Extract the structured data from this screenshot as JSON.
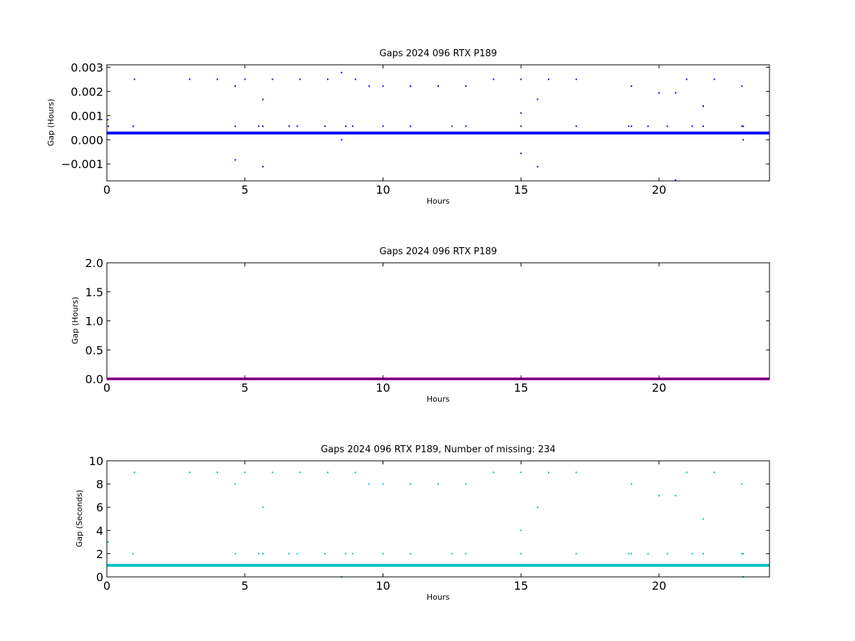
{
  "chart_data": [
    {
      "type": "scatter",
      "title": "Gaps 2024 096 RTX  P189",
      "xlabel": "Hours",
      "ylabel": "Gap (Hours)",
      "xlim": [
        0,
        24
      ],
      "ylim": [
        -0.0017,
        0.0031
      ],
      "xticks": [
        0,
        5,
        10,
        15,
        20
      ],
      "xtick_labels": [
        "0",
        "5",
        "10",
        "15",
        "20"
      ],
      "yticks": [
        -0.001,
        0.0,
        0.001,
        0.002,
        0.003
      ],
      "ytick_labels": [
        "−0.001",
        "0.000",
        "0.001",
        "0.002",
        "0.003"
      ],
      "grid": false,
      "series": [
        {
          "color": "#0000ff",
          "baseline": {
            "from": 0,
            "to": 24,
            "y": 0.00028,
            "dense": true
          },
          "points": [
            [
              0.03,
              0.00083
            ],
            [
              0.05,
              0.00056
            ],
            [
              0.95,
              0.00056
            ],
            [
              1.0,
              0.0025
            ],
            [
              3.0,
              0.0025
            ],
            [
              4.0,
              0.0025
            ],
            [
              4.65,
              0.00222
            ],
            [
              4.65,
              -0.00083
            ],
            [
              4.65,
              0.00056
            ],
            [
              5.0,
              0.0025
            ],
            [
              5.5,
              0.00056
            ],
            [
              5.65,
              0.00167
            ],
            [
              5.65,
              0.00056
            ],
            [
              5.65,
              -0.00111
            ],
            [
              6.0,
              0.0025
            ],
            [
              6.6,
              0.00056
            ],
            [
              6.9,
              0.00056
            ],
            [
              7.0,
              0.0025
            ],
            [
              7.9,
              0.00056
            ],
            [
              8.0,
              0.0025
            ],
            [
              8.5,
              0.00278
            ],
            [
              8.5,
              0.0
            ],
            [
              8.65,
              0.00056
            ],
            [
              8.9,
              0.00056
            ],
            [
              9.0,
              0.0025
            ],
            [
              9.5,
              0.00222
            ],
            [
              10.0,
              0.00222
            ],
            [
              10.0,
              0.00056
            ],
            [
              11.0,
              0.00222
            ],
            [
              11.0,
              0.00056
            ],
            [
              12.0,
              0.00222
            ],
            [
              12.5,
              0.00056
            ],
            [
              13.0,
              0.00222
            ],
            [
              13.0,
              0.00056
            ],
            [
              14.0,
              0.0025
            ],
            [
              15.0,
              0.0025
            ],
            [
              15.0,
              0.00111
            ],
            [
              15.0,
              0.00056
            ],
            [
              15.0,
              -0.00056
            ],
            [
              15.6,
              0.00167
            ],
            [
              15.6,
              -0.00111
            ],
            [
              16.0,
              0.0025
            ],
            [
              17.0,
              0.0025
            ],
            [
              17.0,
              0.00056
            ],
            [
              18.9,
              0.00056
            ],
            [
              19.0,
              0.00222
            ],
            [
              19.0,
              0.00056
            ],
            [
              19.6,
              0.00056
            ],
            [
              20.0,
              0.00194
            ],
            [
              20.3,
              0.00056
            ],
            [
              20.6,
              0.00194
            ],
            [
              20.6,
              -0.00167
            ],
            [
              21.0,
              0.0025
            ],
            [
              21.2,
              0.00056
            ],
            [
              21.6,
              0.00139
            ],
            [
              21.6,
              0.00056
            ],
            [
              22.0,
              0.0025
            ],
            [
              23.0,
              0.00222
            ],
            [
              23.0,
              0.00056
            ],
            [
              23.05,
              0.00056
            ],
            [
              23.05,
              0.0
            ]
          ]
        }
      ]
    },
    {
      "type": "scatter",
      "title": "Gaps 2024 096 RTX  P189",
      "xlabel": "Hours",
      "ylabel": "Gap (Hours)",
      "xlim": [
        0,
        24
      ],
      "ylim": [
        0,
        2.0
      ],
      "xticks": [
        0,
        5,
        10,
        15,
        20
      ],
      "xtick_labels": [
        "0",
        "5",
        "10",
        "15",
        "20"
      ],
      "yticks": [
        0.0,
        0.5,
        1.0,
        1.5,
        2.0
      ],
      "ytick_labels": [
        "0.0",
        "0.5",
        "1.0",
        "1.5",
        "2.0"
      ],
      "grid": false,
      "series": [
        {
          "color": "#bf00bf",
          "baseline": {
            "from": 0,
            "to": 24,
            "y": 0.0,
            "dense": true
          },
          "points": []
        }
      ]
    },
    {
      "type": "scatter",
      "title": "Gaps 2024 096 RTX  P189, Number of missing: 234",
      "xlabel": "Hours",
      "ylabel": "Gap (Seconds)",
      "xlim": [
        0,
        24
      ],
      "ylim": [
        0,
        10
      ],
      "xticks": [
        0,
        5,
        10,
        15,
        20
      ],
      "xtick_labels": [
        "0",
        "5",
        "10",
        "15",
        "20"
      ],
      "yticks": [
        0,
        2,
        4,
        6,
        8,
        10
      ],
      "ytick_labels": [
        "0",
        "2",
        "4",
        "6",
        "8",
        "10"
      ],
      "grid": false,
      "series": [
        {
          "color": "#00bfbf",
          "baseline": {
            "from": 0,
            "to": 24,
            "y": 1.0,
            "dense": true
          },
          "points": [
            [
              0.05,
              3
            ],
            [
              0.95,
              2
            ],
            [
              1.0,
              9
            ],
            [
              3.0,
              9
            ],
            [
              4.0,
              9
            ],
            [
              4.65,
              8
            ],
            [
              4.65,
              2
            ],
            [
              5.0,
              9
            ],
            [
              5.5,
              2
            ],
            [
              5.65,
              6
            ],
            [
              5.65,
              2
            ],
            [
              6.0,
              9
            ],
            [
              6.6,
              2
            ],
            [
              6.9,
              2
            ],
            [
              7.0,
              9
            ],
            [
              7.9,
              2
            ],
            [
              8.0,
              9
            ],
            [
              8.5,
              0
            ],
            [
              8.65,
              2
            ],
            [
              8.9,
              2
            ],
            [
              9.0,
              9
            ],
            [
              9.5,
              8
            ],
            [
              10.0,
              8
            ],
            [
              10.0,
              2
            ],
            [
              11.0,
              8
            ],
            [
              11.0,
              2
            ],
            [
              12.0,
              8
            ],
            [
              12.5,
              2
            ],
            [
              13.0,
              8
            ],
            [
              13.0,
              2
            ],
            [
              14.0,
              9
            ],
            [
              15.0,
              9
            ],
            [
              15.0,
              4
            ],
            [
              15.0,
              2
            ],
            [
              15.6,
              6
            ],
            [
              16.0,
              9
            ],
            [
              17.0,
              9
            ],
            [
              17.0,
              2
            ],
            [
              18.9,
              2
            ],
            [
              19.0,
              8
            ],
            [
              19.0,
              2
            ],
            [
              19.6,
              2
            ],
            [
              20.0,
              7
            ],
            [
              20.3,
              2
            ],
            [
              20.6,
              7
            ],
            [
              21.0,
              9
            ],
            [
              21.2,
              2
            ],
            [
              21.6,
              5
            ],
            [
              21.6,
              2
            ],
            [
              22.0,
              9
            ],
            [
              23.0,
              8
            ],
            [
              23.0,
              2
            ],
            [
              23.05,
              2
            ],
            [
              23.05,
              0
            ]
          ]
        }
      ]
    }
  ]
}
